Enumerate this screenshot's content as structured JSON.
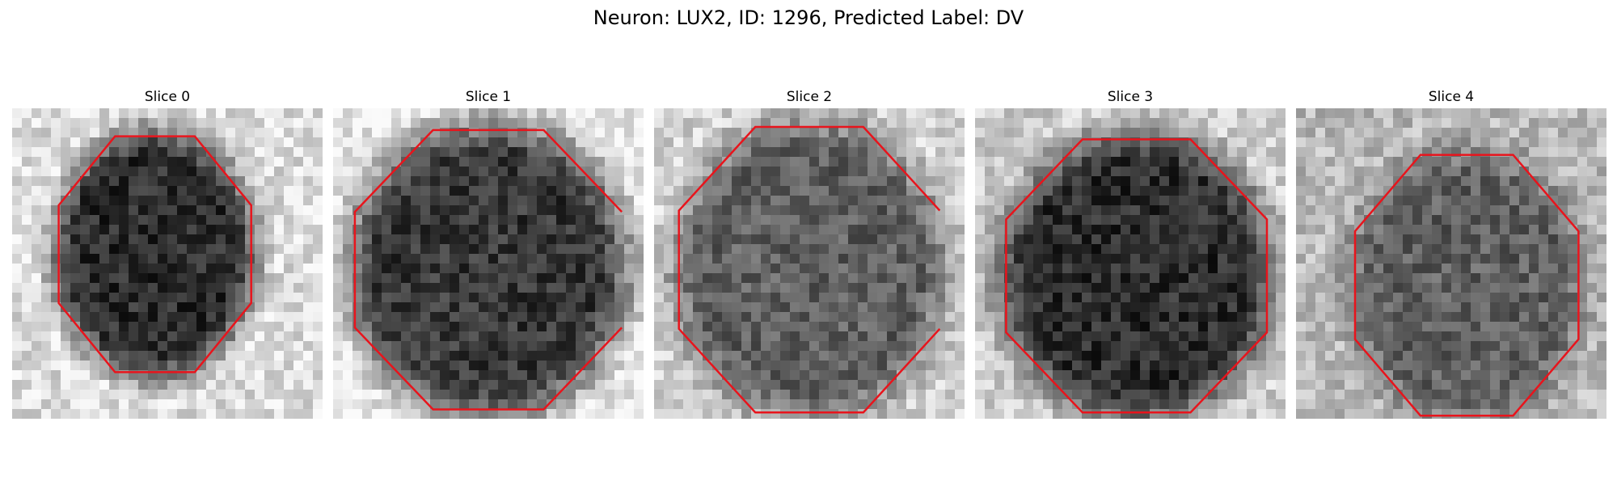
{
  "figure": {
    "title": "Neuron: LUX2, ID: 1296, Predicted Label: DV"
  },
  "panels": [
    {
      "title": "Slice 0",
      "center": [
        0.46,
        0.47
      ],
      "radii": [
        0.31,
        0.38
      ],
      "base_dark": 45,
      "bg_light": 220,
      "contour_open": false
    },
    {
      "title": "Slice 1",
      "center": [
        0.5,
        0.52
      ],
      "radii": [
        0.43,
        0.45
      ],
      "base_dark": 55,
      "bg_light": 230,
      "contour_open": true
    },
    {
      "title": "Slice 2",
      "center": [
        0.5,
        0.52
      ],
      "radii": [
        0.42,
        0.46
      ],
      "base_dark": 95,
      "bg_light": 210,
      "contour_open": true
    },
    {
      "title": "Slice 3",
      "center": [
        0.52,
        0.54
      ],
      "radii": [
        0.42,
        0.44
      ],
      "base_dark": 45,
      "bg_light": 205,
      "contour_open": false
    },
    {
      "title": "Slice 4",
      "center": [
        0.55,
        0.57
      ],
      "radii": [
        0.36,
        0.42
      ],
      "base_dark": 95,
      "bg_light": 185,
      "contour_open": false
    }
  ],
  "contour_color": "#e8141c"
}
